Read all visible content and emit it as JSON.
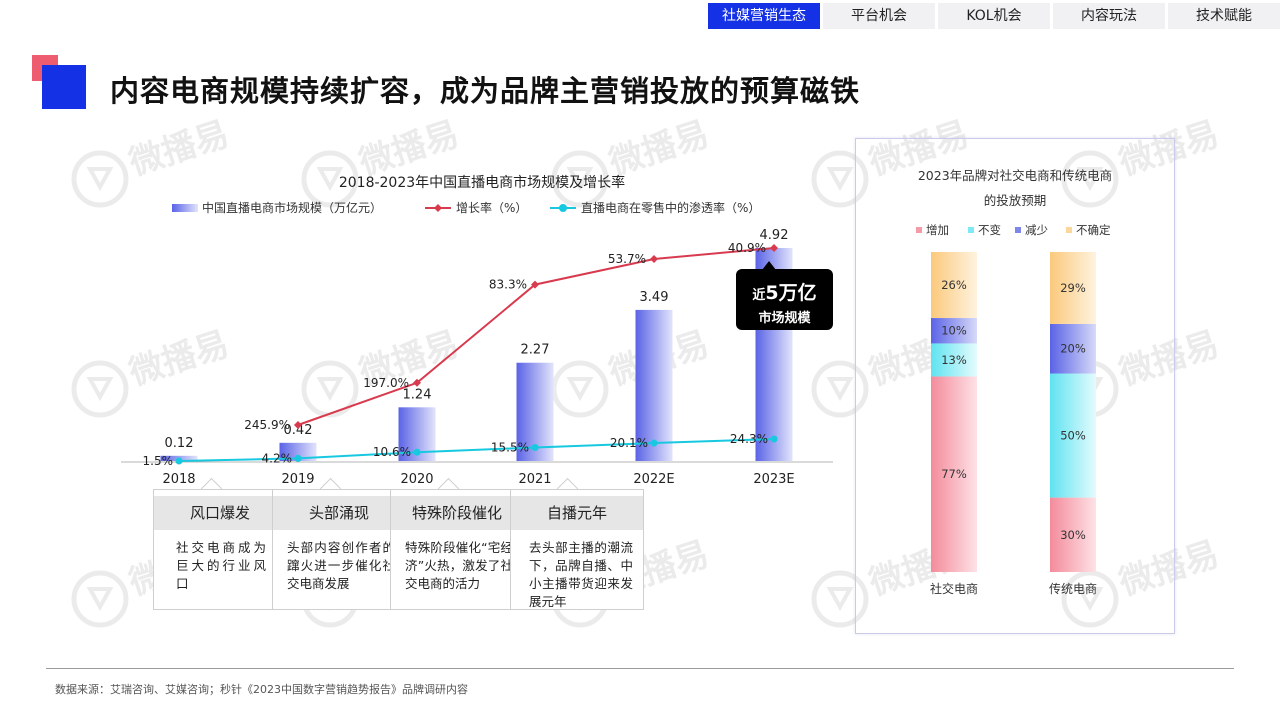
{
  "nav": {
    "tabs": [
      {
        "label": "社媒营销生态",
        "active": true
      },
      {
        "label": "平台机会",
        "active": false
      },
      {
        "label": "KOL机会",
        "active": false
      },
      {
        "label": "内容玩法",
        "active": false
      },
      {
        "label": "技术赋能",
        "active": false
      }
    ]
  },
  "page": {
    "title": "内容电商规模持续扩容，成为品牌主营销投放的预算磁铁",
    "watermark": "微播易"
  },
  "callout": {
    "prefix": "近",
    "big": "5万亿",
    "line2": "市场规模"
  },
  "stages": [
    {
      "title": "风口爆发",
      "text": "社交电商成为巨大的行业风口"
    },
    {
      "title": "头部涌现",
      "text": "头部内容创作者的蹿火进一步催化社交电商发展"
    },
    {
      "title": "特殊阶段催化",
      "text": "特殊阶段催化“宅经济”火热，激发了社交电商的活力"
    },
    {
      "title": "自播元年",
      "text": "去头部主播的潮流下，品牌自播、中小主播带货迎来发展元年"
    }
  ],
  "footer": {
    "source": "数据来源：艾瑞咨询、艾媒咨询；秒针《2023中国数字营销趋势报告》品牌调研内容"
  },
  "colors": {
    "accent": "#1431e6",
    "pink": "#ee5c70",
    "growth": "#d83a4e",
    "penetration": "#17c9e0"
  },
  "chart_data": [
    {
      "type": "bar",
      "title": "2018-2023年中国直播电商市场规模及增长率",
      "categories": [
        "2018",
        "2019",
        "2020",
        "2021",
        "2022E",
        "2023E"
      ],
      "series": [
        {
          "name": "中国直播电商市场规模（万亿元）",
          "type": "bar",
          "values": [
            0.12,
            0.42,
            1.24,
            2.27,
            3.49,
            4.92
          ],
          "labels": [
            "0.12",
            "0.42",
            "1.24",
            "2.27",
            "3.49",
            "4.92"
          ]
        },
        {
          "name": "增长率（%）",
          "type": "line",
          "values": [
            245.9,
            197.0,
            83.3,
            53.7,
            40.9
          ],
          "x": [
            "2019",
            "2020",
            "2021",
            "2022E",
            "2023E"
          ],
          "labels": [
            "245.9%",
            "197.0%",
            "83.3%",
            "53.7%",
            "40.9%"
          ]
        },
        {
          "name": "直播电商在零售中的渗透率（%）",
          "type": "line",
          "values": [
            1.5,
            4.2,
            10.6,
            15.5,
            20.1,
            24.3
          ],
          "labels": [
            "1.5%",
            "4.2%",
            "10.6%",
            "15.5%",
            "20.1%",
            "24.3%"
          ]
        }
      ],
      "legend": "top",
      "grid": false
    },
    {
      "type": "bar",
      "stacked": true,
      "title_lines": [
        "2023年品牌对社交电商和传统电商",
        "的投放预期"
      ],
      "categories": [
        "社交电商",
        "传统电商"
      ],
      "series": [
        {
          "name": "增加",
          "values": [
            77,
            30
          ],
          "color": "#f59aa8"
        },
        {
          "name": "不变",
          "values": [
            13,
            50
          ],
          "color": "#7eeaf5"
        },
        {
          "name": "减少",
          "values": [
            10,
            20
          ],
          "color": "#7f86ea"
        },
        {
          "name": "不确定",
          "values": [
            26,
            29
          ],
          "color": "#fbd79a"
        }
      ],
      "legend": "top",
      "grid": false
    }
  ]
}
